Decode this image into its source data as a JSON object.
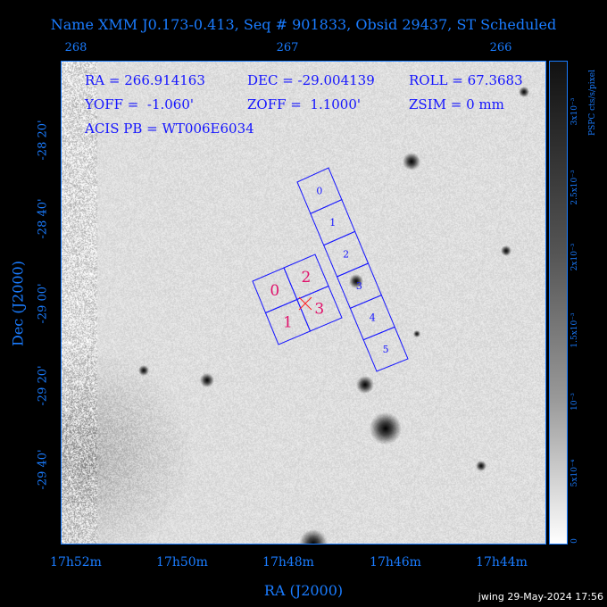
{
  "title": "Name XMM J0.173-0.413, Seq # 901833, Obsid 29437, ST Scheduled",
  "info": {
    "line1": [
      "RA = 266.914163",
      "DEC = -29.004139",
      "ROLL = 67.3683"
    ],
    "line2": [
      "YOFF =  -1.060'",
      "ZOFF =  1.1000'",
      "ZSIM = 0 mm"
    ],
    "line3": "ACIS PB = WT006E6034"
  },
  "top_axis_ticks": [
    "268",
    "267",
    "266"
  ],
  "bottom_axis_ticks": [
    "17h52m",
    "17h50m",
    "17h48m",
    "17h46m",
    "17h44m"
  ],
  "left_axis_ticks": [
    "-28 20'",
    "-28 40'",
    "-29 00'",
    "-29 20'",
    "-29 40'"
  ],
  "xlabel": "RA (J2000)",
  "ylabel": "Dec (J2000)",
  "colorbar": {
    "labels": [
      "0",
      "5x10⁻⁴",
      "10⁻³",
      "1.5x10⁻³",
      "2x10⁻³",
      "2.5x10⁻³",
      "3x10⁻³"
    ],
    "unit": "PSPC cts/s/pixel"
  },
  "acis_s_chips": [
    "0",
    "1",
    "2",
    "3",
    "4",
    "5"
  ],
  "acis_i_chips": [
    "0",
    "1",
    "2",
    "3"
  ],
  "colors": {
    "axis": "#1a7cff",
    "chip_outline": "#1515ff",
    "acis_i_label": "#e0106a",
    "aimpoint": "#ff2020"
  },
  "stamp": "jwing 29-May-2024 17:56"
}
